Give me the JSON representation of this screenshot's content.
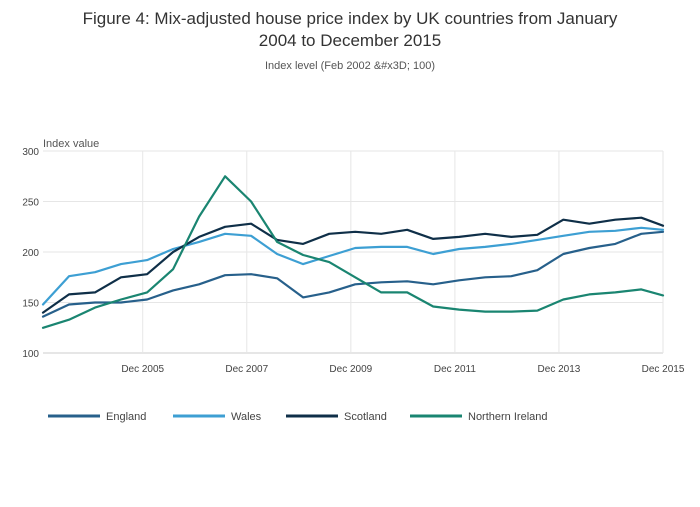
{
  "chart_data": {
    "type": "line",
    "title_line1": "Figure 4: Mix-adjusted house price index by UK countries from January",
    "title_line2": "2004 to December 2015",
    "subtitle": "Index level (Feb 2002 &#x3D; 100)",
    "ylabel": "Index value",
    "xlabel": "",
    "ylim": [
      100,
      300
    ],
    "yticks": [
      100,
      150,
      200,
      250,
      300
    ],
    "xlim": [
      "2004-01",
      "2015-12"
    ],
    "xticks": [
      {
        "at": "2005-12",
        "label": "Dec 2005"
      },
      {
        "at": "2007-12",
        "label": "Dec 2007"
      },
      {
        "at": "2009-12",
        "label": "Dec 2009"
      },
      {
        "at": "2011-12",
        "label": "Dec 2011"
      },
      {
        "at": "2013-12",
        "label": "Dec 2013"
      },
      {
        "at": "2015-12",
        "label": "Dec 2015"
      }
    ],
    "grid": true,
    "legend_position": "bottom",
    "x_sampling": "semiannual, Jan and Jul of each year from Jan 2004 to Jul 2015, then Dec 2015",
    "x": [
      "2004-01",
      "2004-07",
      "2005-01",
      "2005-07",
      "2006-01",
      "2006-07",
      "2007-01",
      "2007-07",
      "2008-01",
      "2008-07",
      "2009-01",
      "2009-07",
      "2010-01",
      "2010-07",
      "2011-01",
      "2011-07",
      "2012-01",
      "2012-07",
      "2013-01",
      "2013-07",
      "2014-01",
      "2014-07",
      "2015-01",
      "2015-07",
      "2015-12"
    ],
    "series": [
      {
        "name": "England",
        "color": "#27608b",
        "values": [
          136,
          148,
          150,
          150,
          153,
          162,
          168,
          177,
          178,
          174,
          155,
          160,
          168,
          170,
          171,
          168,
          172,
          175,
          176,
          182,
          198,
          204,
          208,
          218,
          220
        ]
      },
      {
        "name": "Wales",
        "color": "#3d9fd3",
        "values": [
          148,
          176,
          180,
          188,
          192,
          203,
          210,
          218,
          216,
          198,
          188,
          196,
          204,
          205,
          205,
          198,
          203,
          205,
          208,
          212,
          216,
          220,
          221,
          224,
          222
        ]
      },
      {
        "name": "Scotland",
        "color": "#0f2f48",
        "values": [
          140,
          158,
          160,
          175,
          178,
          200,
          215,
          225,
          228,
          212,
          208,
          218,
          220,
          218,
          222,
          213,
          215,
          218,
          215,
          217,
          232,
          228,
          232,
          234,
          226
        ]
      },
      {
        "name": "Northern Ireland",
        "color": "#1a8571",
        "values": [
          125,
          133,
          145,
          153,
          160,
          183,
          235,
          275,
          250,
          210,
          197,
          190,
          175,
          160,
          160,
          146,
          143,
          141,
          141,
          142,
          153,
          158,
          160,
          163,
          157
        ]
      }
    ]
  }
}
